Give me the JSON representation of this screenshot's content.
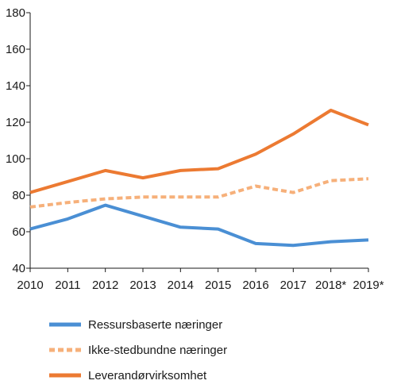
{
  "chart_data": {
    "type": "line",
    "title": "",
    "xlabel": "",
    "ylabel": "",
    "categories": [
      "2010",
      "2011",
      "2012",
      "2013",
      "2014",
      "2015",
      "2016",
      "2017",
      "2018*",
      "2019*"
    ],
    "ylim": [
      40,
      180
    ],
    "yticks": [
      40,
      60,
      80,
      100,
      120,
      140,
      160,
      180
    ],
    "grid": false,
    "legend_position": "bottom",
    "series": [
      {
        "name": "Ressursbaserte næringer",
        "color": "#4a8fd4",
        "dash": "solid",
        "values": [
          61.5,
          67,
          74.5,
          68.5,
          62.5,
          61.5,
          53.5,
          52.5,
          54.5,
          55.5
        ]
      },
      {
        "name": "Ikke-stedbundne næringer",
        "color": "#f6b07a",
        "dash": "dashed",
        "values": [
          73.5,
          76,
          78,
          79,
          79,
          79,
          85,
          81.5,
          88,
          89
        ]
      },
      {
        "name": "Leverandørvirksomhet",
        "color": "#ec7a32",
        "dash": "solid",
        "values": [
          81.5,
          87.5,
          93.5,
          89.5,
          93.5,
          94.5,
          102.5,
          113.5,
          126.5,
          118.5
        ]
      }
    ]
  }
}
